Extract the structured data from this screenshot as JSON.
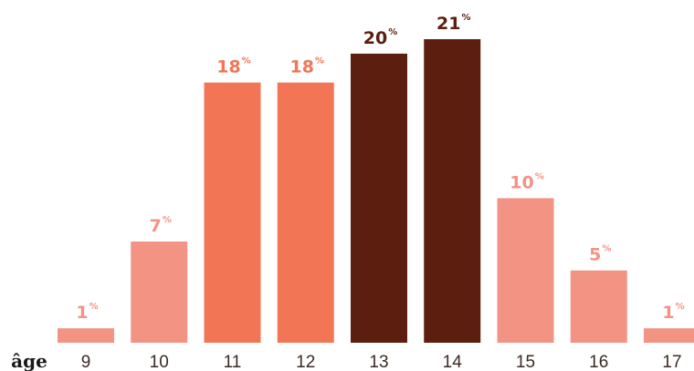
{
  "chart_data": {
    "type": "bar",
    "xlabel": "âge",
    "categories": [
      "9",
      "10",
      "11",
      "12",
      "13",
      "14",
      "15",
      "16",
      "17"
    ],
    "values": [
      1,
      7,
      18,
      18,
      20,
      21,
      10,
      5,
      1
    ],
    "value_labels": [
      "1",
      "7",
      "18",
      "18",
      "20",
      "21",
      "10",
      "5",
      "1"
    ],
    "unit": "%",
    "ylim": [
      0,
      21
    ],
    "grid": false,
    "legend": "none",
    "bar_colors": [
      "#f39384",
      "#f39384",
      "#f27656",
      "#f27656",
      "#5c1e0e",
      "#5c1e0e",
      "#f39384",
      "#f39384",
      "#f39384"
    ]
  }
}
